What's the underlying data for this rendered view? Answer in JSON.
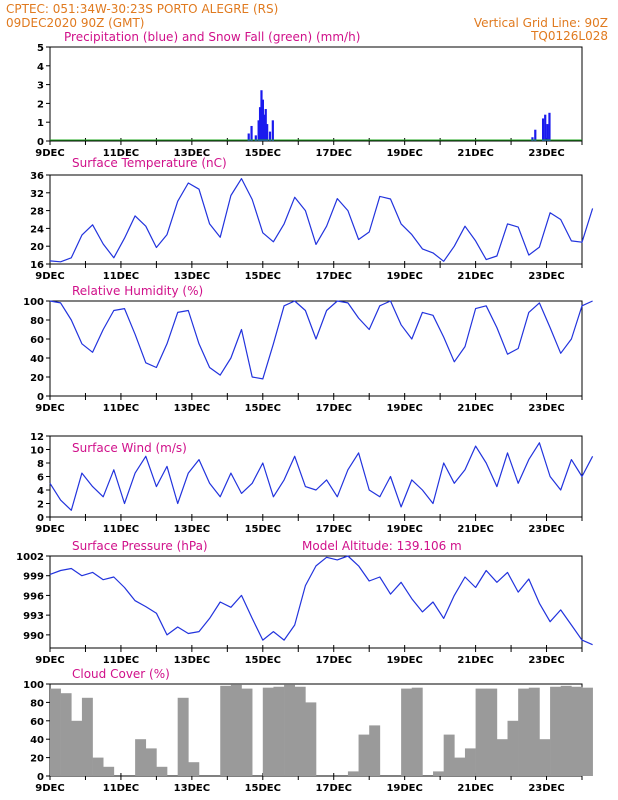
{
  "header": {
    "line1_left": "CPTEC:   051:34W-30:23S   PORTO ALEGRE (RS)",
    "line2_left": "09DEC2020 90Z (GMT)",
    "line2_right": "Vertical Grid Line: 90Z",
    "line3_right": "TQ0126L028"
  },
  "colors": {
    "header": "#e07a1f",
    "title": "#d0108a",
    "line": "#2233dd",
    "precip": "#1a1aee",
    "snow": "#22aa22",
    "cloud": "#9a9a9a"
  },
  "x_ticks": [
    "9DEC",
    "11DEC",
    "13DEC",
    "15DEC",
    "17DEC",
    "19DEC",
    "21DEC",
    "23DEC"
  ],
  "panels": [
    {
      "id": "precip",
      "title": "Precipitation (blue) and Snow Fall (green) (mm/h)",
      "yticks": [
        "0",
        "1",
        "2",
        "3",
        "4",
        "5"
      ]
    },
    {
      "id": "temp",
      "title": "Surface Temperature (nC)",
      "yticks": [
        "16",
        "20",
        "24",
        "28",
        "32",
        "36"
      ]
    },
    {
      "id": "rh",
      "title": "Relative Humidity (%)",
      "yticks": [
        "0",
        "20",
        "40",
        "60",
        "80",
        "100"
      ]
    },
    {
      "id": "wind",
      "title": "Surface Wind (m/s)",
      "yticks": [
        "0",
        "2",
        "4",
        "6",
        "8",
        "10",
        "12"
      ]
    },
    {
      "id": "pres",
      "title": "Surface Pressure (hPa)",
      "extra": "Model Altitude: 139.106 m",
      "yticks": [
        "990",
        "993",
        "996",
        "999",
        "1002"
      ]
    },
    {
      "id": "cloud",
      "title": "Cloud Cover (%)",
      "yticks": [
        "0",
        "20",
        "40",
        "60",
        "80",
        "100"
      ]
    }
  ],
  "chart_data": [
    {
      "type": "bar",
      "title": "Precipitation (blue) and Snow Fall (green) (mm/h)",
      "x_unit": "days since 9DEC 00Z",
      "ylim": [
        0,
        5
      ],
      "series": [
        {
          "name": "Precipitation",
          "x": [
            5.6,
            5.68,
            5.8,
            5.88,
            5.92,
            5.96,
            6.0,
            6.04,
            6.08,
            6.12,
            6.2,
            6.28,
            13.6,
            13.68,
            13.9,
            13.96,
            14.02,
            14.08
          ],
          "values": [
            0.4,
            0.8,
            0.3,
            1.1,
            1.8,
            2.7,
            2.2,
            1.4,
            1.7,
            0.9,
            0.5,
            1.1,
            0.2,
            0.6,
            1.2,
            1.4,
            0.9,
            1.5
          ]
        },
        {
          "name": "Snow Fall",
          "x": [],
          "values": []
        }
      ]
    },
    {
      "type": "line",
      "title": "Surface Temperature (nC)",
      "ylim": [
        16,
        36
      ],
      "x": [
        0,
        0.3,
        0.6,
        0.9,
        1.2,
        1.5,
        1.8,
        2.1,
        2.4,
        2.7,
        3.0,
        3.3,
        3.6,
        3.9,
        4.2,
        4.5,
        4.8,
        5.1,
        5.4,
        5.7,
        6.0,
        6.3,
        6.6,
        6.9,
        7.2,
        7.5,
        7.8,
        8.1,
        8.4,
        8.7,
        9.0,
        9.3,
        9.6,
        9.9,
        10.2,
        10.5,
        10.8,
        11.1,
        11.4,
        11.7,
        12.0,
        12.3,
        12.6,
        12.9,
        13.2,
        13.5,
        13.8,
        14.1,
        14.4,
        14.7,
        15.0,
        15.3
      ],
      "values": [
        16.7,
        16.5,
        17.4,
        22.5,
        24.8,
        20.5,
        17.4,
        21.8,
        26.8,
        24.5,
        19.7,
        22.6,
        30.1,
        34.2,
        32.8,
        25.0,
        22.0,
        31.4,
        35.2,
        30.5,
        23.0,
        21.0,
        25.0,
        31.0,
        28.0,
        20.4,
        24.5,
        30.7,
        28.0,
        21.5,
        23.2,
        31.2,
        30.6,
        25.0,
        22.6,
        19.4,
        18.5,
        16.6,
        20.0,
        24.5,
        21.2,
        17.0,
        17.8,
        25.0,
        24.3,
        18.0,
        19.8,
        27.5,
        26.0,
        21.2,
        20.9,
        28.5
      ]
    },
    {
      "type": "line",
      "title": "Relative Humidity (%)",
      "ylim": [
        0,
        100
      ],
      "x": [
        0,
        0.3,
        0.6,
        0.9,
        1.2,
        1.5,
        1.8,
        2.1,
        2.4,
        2.7,
        3.0,
        3.3,
        3.6,
        3.9,
        4.2,
        4.5,
        4.8,
        5.1,
        5.4,
        5.7,
        6.0,
        6.3,
        6.6,
        6.9,
        7.2,
        7.5,
        7.8,
        8.1,
        8.4,
        8.7,
        9.0,
        9.3,
        9.6,
        9.9,
        10.2,
        10.5,
        10.8,
        11.1,
        11.4,
        11.7,
        12.0,
        12.3,
        12.6,
        12.9,
        13.2,
        13.5,
        13.8,
        14.1,
        14.4,
        14.7,
        15.0,
        15.3
      ],
      "values": [
        100,
        98,
        80,
        55,
        46,
        70,
        90,
        92,
        65,
        35,
        30,
        55,
        88,
        90,
        55,
        30,
        22,
        40,
        70,
        20,
        18,
        55,
        95,
        100,
        90,
        60,
        90,
        100,
        98,
        82,
        70,
        95,
        100,
        75,
        60,
        88,
        85,
        62,
        36,
        52,
        92,
        95,
        72,
        44,
        50,
        88,
        98,
        72,
        45,
        60,
        95,
        100
      ]
    },
    {
      "type": "line",
      "title": "Surface Wind (m/s)",
      "ylim": [
        0,
        12
      ],
      "x": [
        0,
        0.3,
        0.6,
        0.9,
        1.2,
        1.5,
        1.8,
        2.1,
        2.4,
        2.7,
        3.0,
        3.3,
        3.6,
        3.9,
        4.2,
        4.5,
        4.8,
        5.1,
        5.4,
        5.7,
        6.0,
        6.3,
        6.6,
        6.9,
        7.2,
        7.5,
        7.8,
        8.1,
        8.4,
        8.7,
        9.0,
        9.3,
        9.6,
        9.9,
        10.2,
        10.5,
        10.8,
        11.1,
        11.4,
        11.7,
        12.0,
        12.3,
        12.6,
        12.9,
        13.2,
        13.5,
        13.8,
        14.1,
        14.4,
        14.7,
        15.0,
        15.3
      ],
      "values": [
        5.0,
        2.5,
        1.0,
        6.5,
        4.5,
        3.0,
        7.0,
        2.0,
        6.5,
        9.0,
        4.5,
        7.5,
        2.0,
        6.5,
        8.5,
        5.0,
        3.0,
        6.5,
        3.5,
        5.0,
        8.0,
        3.0,
        5.5,
        9.0,
        4.5,
        4.0,
        5.5,
        3.0,
        7.0,
        9.5,
        4.0,
        3.0,
        6.0,
        1.5,
        5.5,
        4.0,
        2.0,
        8.0,
        5.0,
        7.0,
        10.5,
        8.0,
        4.5,
        9.5,
        5.0,
        8.5,
        11.0,
        6.0,
        4.0,
        8.5,
        6.0,
        9.0
      ]
    },
    {
      "type": "line",
      "title": "Surface Pressure (hPa)",
      "ylim": [
        988,
        1002
      ],
      "x": [
        0,
        0.3,
        0.6,
        0.9,
        1.2,
        1.5,
        1.8,
        2.1,
        2.4,
        2.7,
        3.0,
        3.3,
        3.6,
        3.9,
        4.2,
        4.5,
        4.8,
        5.1,
        5.4,
        5.7,
        6.0,
        6.3,
        6.6,
        6.9,
        7.2,
        7.5,
        7.8,
        8.1,
        8.4,
        8.7,
        9.0,
        9.3,
        9.6,
        9.9,
        10.2,
        10.5,
        10.8,
        11.1,
        11.4,
        11.7,
        12.0,
        12.3,
        12.6,
        12.9,
        13.2,
        13.5,
        13.8,
        14.1,
        14.4,
        14.7,
        15.0,
        15.3
      ],
      "values": [
        999.2,
        999.8,
        1000.1,
        999.0,
        999.5,
        998.4,
        998.8,
        997.2,
        995.2,
        994.3,
        993.3,
        990.0,
        991.2,
        990.2,
        990.5,
        992.5,
        995.0,
        994.2,
        996.0,
        992.5,
        989.2,
        990.5,
        989.2,
        991.5,
        997.5,
        1000.5,
        1001.8,
        1001.4,
        1002.0,
        1000.5,
        998.2,
        998.8,
        996.2,
        998.0,
        995.5,
        993.5,
        995.0,
        992.5,
        996.0,
        998.8,
        997.2,
        999.8,
        998.0,
        999.5,
        996.5,
        998.5,
        994.8,
        992.0,
        993.8,
        991.5,
        989.2,
        988.5
      ]
    },
    {
      "type": "bar",
      "title": "Cloud Cover (%)",
      "ylim": [
        0,
        100
      ],
      "x": [
        0,
        0.3,
        0.6,
        0.9,
        1.2,
        1.5,
        1.8,
        2.1,
        2.4,
        2.7,
        3.0,
        3.3,
        3.6,
        3.9,
        4.2,
        4.5,
        4.8,
        5.1,
        5.4,
        5.7,
        6.0,
        6.3,
        6.6,
        6.9,
        7.2,
        7.5,
        7.8,
        8.1,
        8.4,
        8.7,
        9.0,
        9.3,
        9.6,
        9.9,
        10.2,
        10.5,
        10.8,
        11.1,
        11.4,
        11.7,
        12.0,
        12.3,
        12.6,
        12.9,
        13.2,
        13.5,
        13.8,
        14.1,
        14.4,
        14.7,
        15.0,
        15.3
      ],
      "values": [
        95,
        90,
        60,
        85,
        20,
        10,
        0,
        0,
        40,
        30,
        10,
        0,
        85,
        15,
        0,
        0,
        98,
        99,
        95,
        0,
        96,
        97,
        99,
        97,
        80,
        0,
        0,
        0,
        5,
        45,
        55,
        0,
        0,
        95,
        96,
        0,
        5,
        45,
        20,
        30,
        95,
        95,
        40,
        60,
        95,
        96,
        40,
        97,
        98,
        97,
        96,
        97
      ]
    }
  ]
}
